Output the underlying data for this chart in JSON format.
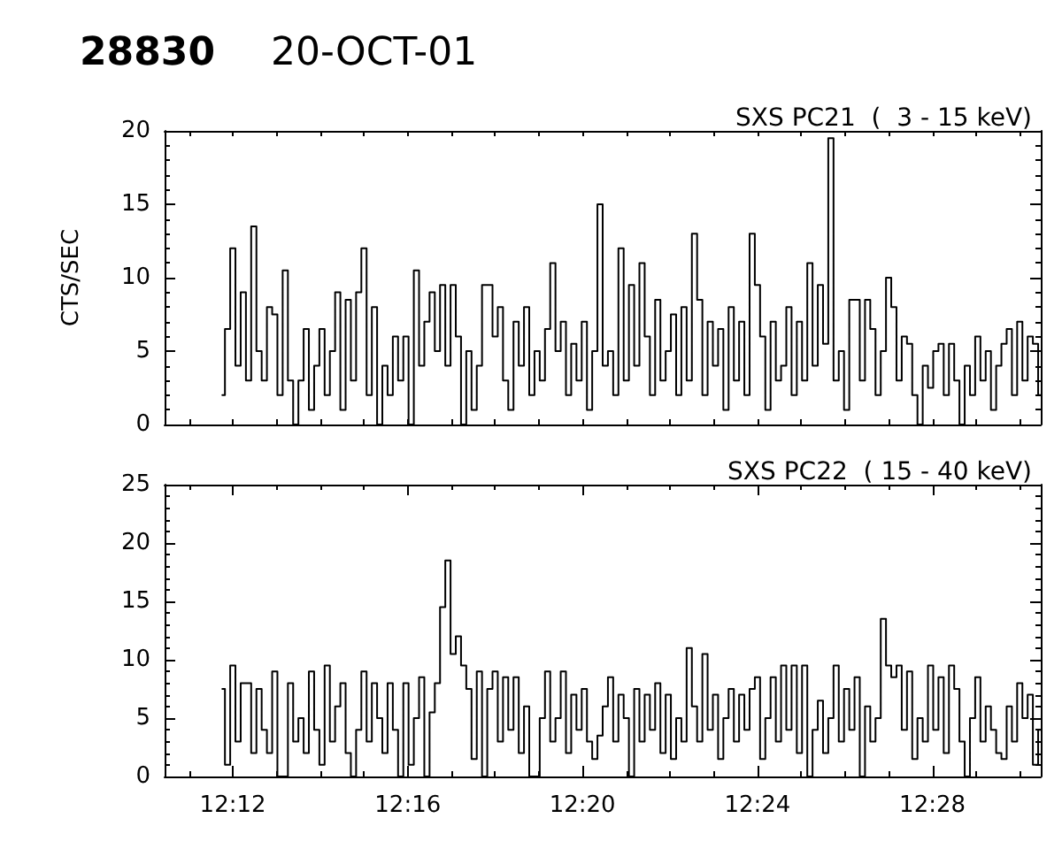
{
  "chart_data": [
    {
      "type": "step",
      "title": "28830",
      "subtitle": "20-OCT-01",
      "ylabel": "CTS/SEC",
      "tick_labels": "y",
      "x": [
        12.196,
        12.198,
        12.2,
        12.202,
        12.204,
        12.206,
        12.208,
        12.21,
        12.212,
        12.214,
        12.216,
        12.218,
        12.22,
        12.222,
        12.224,
        12.226,
        12.228,
        12.23,
        12.232,
        12.234,
        12.236,
        12.238,
        12.24,
        12.242,
        12.244,
        12.246,
        12.248,
        12.25,
        12.252,
        12.254,
        12.256,
        12.258,
        12.26,
        12.262,
        12.264,
        12.266,
        12.268,
        12.27,
        12.272,
        12.274,
        12.276,
        12.278,
        12.28,
        12.282,
        12.284,
        12.286,
        12.288,
        12.29,
        12.292,
        12.294,
        12.296,
        12.298,
        12.3,
        12.302,
        12.304,
        12.306,
        12.308,
        12.31,
        12.312,
        12.314,
        12.316,
        12.318,
        12.32,
        12.322,
        12.324,
        12.326,
        12.328,
        12.33,
        12.332,
        12.334,
        12.336,
        12.338,
        12.34,
        12.342,
        12.344,
        12.346,
        12.348,
        12.35,
        12.352,
        12.354,
        12.356,
        12.358,
        12.36,
        12.362,
        12.364,
        12.366,
        12.368,
        12.37,
        12.372,
        12.374,
        12.376,
        12.378,
        12.38,
        12.382,
        12.384,
        12.386,
        12.388,
        12.39,
        12.392,
        12.394,
        12.396,
        12.398,
        12.4,
        12.402,
        12.404,
        12.406,
        12.408,
        12.41,
        12.412,
        12.414,
        12.416,
        12.418,
        12.42,
        12.422,
        12.424,
        12.426,
        12.428,
        12.43,
        12.432,
        12.434,
        12.436,
        12.438,
        12.44,
        12.442,
        12.444,
        12.446,
        12.448,
        12.45,
        12.452,
        12.454,
        12.456,
        12.458,
        12.46,
        12.462,
        12.464,
        12.466,
        12.468,
        12.47,
        12.472,
        12.474,
        12.476,
        12.478,
        12.48,
        12.482,
        12.484,
        12.486,
        12.488,
        12.49,
        12.492,
        12.494,
        12.496,
        12.498,
        12.5,
        12.502,
        12.504,
        12.506,
        12.508
      ],
      "series": [
        {
          "name": "SXS PC21  (  3 - 15 keV)",
          "color": "#000000",
          "values": [
            2,
            6.5,
            12,
            4,
            9,
            3,
            13.5,
            5,
            3,
            8,
            7.5,
            2,
            10.5,
            3,
            0,
            3,
            6.5,
            1,
            4,
            6.5,
            2,
            5,
            9,
            1,
            8.5,
            3,
            9,
            12,
            2,
            8,
            0,
            4,
            2,
            6,
            3,
            6,
            0,
            10.5,
            4,
            7,
            9,
            5,
            9.5,
            4,
            9.5,
            6,
            0,
            5,
            1,
            4,
            9.5,
            9.5,
            6,
            8,
            3,
            1,
            7,
            4,
            8,
            2,
            5,
            3,
            6.5,
            11,
            5,
            7,
            2,
            5.5,
            3,
            7,
            1,
            5,
            15,
            4,
            5,
            2,
            12,
            3,
            9.5,
            4,
            11,
            6,
            2,
            8.5,
            3,
            5,
            7.5,
            2,
            8,
            3,
            13,
            8.5,
            2,
            7,
            4,
            6.5,
            1,
            8,
            3,
            7,
            2,
            13,
            9.5,
            6,
            1,
            7,
            3,
            4,
            8,
            2,
            7,
            3,
            11,
            4,
            9.5,
            5.5,
            19.5,
            3,
            5,
            1,
            8.5,
            8.5,
            3,
            8.5,
            6.5,
            2,
            5,
            10,
            8,
            3,
            6,
            5.5,
            2,
            0,
            4,
            2.5,
            5,
            5.5,
            2,
            5.5,
            3,
            0,
            4,
            2,
            6,
            3,
            5,
            1,
            4,
            5.5,
            6.5,
            2,
            7,
            3,
            6,
            5.5,
            2
          ]
        }
      ],
      "xlim": [
        12.174,
        12.508
      ],
      "xticks": [
        {
          "value": 12.1833,
          "label": null
        },
        {
          "value": 12.2,
          "label": null
        },
        {
          "value": 12.2167,
          "label": null
        },
        {
          "value": 12.2333,
          "label": null
        },
        {
          "value": 12.25,
          "label": null
        },
        {
          "value": 12.2667,
          "label": null
        },
        {
          "value": 12.2833,
          "label": null
        },
        {
          "value": 12.3,
          "label": null
        },
        {
          "value": 12.3167,
          "label": null
        },
        {
          "value": 12.3333,
          "label": null
        },
        {
          "value": 12.35,
          "label": null
        },
        {
          "value": 12.3667,
          "label": null
        },
        {
          "value": 12.3833,
          "label": null
        },
        {
          "value": 12.4,
          "label": null
        },
        {
          "value": 12.4167,
          "label": null
        },
        {
          "value": 12.4333,
          "label": null
        },
        {
          "value": 12.45,
          "label": null
        },
        {
          "value": 12.4667,
          "label": null
        },
        {
          "value": 12.4833,
          "label": null
        },
        {
          "value": 12.5,
          "label": null
        }
      ],
      "ylim": [
        0,
        20
      ],
      "yticks": [
        0,
        {
          "value": 1,
          "label": null
        },
        {
          "value": 2,
          "label": null
        },
        {
          "value": 3,
          "label": null
        },
        {
          "value": 4,
          "label": null
        },
        5,
        {
          "value": 6,
          "label": null
        },
        {
          "value": 7,
          "label": null
        },
        {
          "value": 8,
          "label": null
        },
        {
          "value": 9,
          "label": null
        },
        10,
        {
          "value": 11,
          "label": null
        },
        {
          "value": 12,
          "label": null
        },
        {
          "value": 13,
          "label": null
        },
        {
          "value": 14,
          "label": null
        },
        15,
        {
          "value": 16,
          "label": null
        },
        {
          "value": 17,
          "label": null
        },
        {
          "value": 18,
          "label": null
        },
        {
          "value": 19,
          "label": null
        },
        20
      ]
    },
    {
      "type": "step",
      "x": [
        12.196,
        12.198,
        12.2,
        12.202,
        12.204,
        12.206,
        12.208,
        12.21,
        12.212,
        12.214,
        12.216,
        12.218,
        12.22,
        12.222,
        12.224,
        12.226,
        12.228,
        12.23,
        12.232,
        12.234,
        12.236,
        12.238,
        12.24,
        12.242,
        12.244,
        12.246,
        12.248,
        12.25,
        12.252,
        12.254,
        12.256,
        12.258,
        12.26,
        12.262,
        12.264,
        12.266,
        12.268,
        12.27,
        12.272,
        12.274,
        12.276,
        12.278,
        12.28,
        12.282,
        12.284,
        12.286,
        12.288,
        12.29,
        12.292,
        12.294,
        12.296,
        12.298,
        12.3,
        12.302,
        12.304,
        12.306,
        12.308,
        12.31,
        12.312,
        12.314,
        12.316,
        12.318,
        12.32,
        12.322,
        12.324,
        12.326,
        12.328,
        12.33,
        12.332,
        12.334,
        12.336,
        12.338,
        12.34,
        12.342,
        12.344,
        12.346,
        12.348,
        12.35,
        12.352,
        12.354,
        12.356,
        12.358,
        12.36,
        12.362,
        12.364,
        12.366,
        12.368,
        12.37,
        12.372,
        12.374,
        12.376,
        12.378,
        12.38,
        12.382,
        12.384,
        12.386,
        12.388,
        12.39,
        12.392,
        12.394,
        12.396,
        12.398,
        12.4,
        12.402,
        12.404,
        12.406,
        12.408,
        12.41,
        12.412,
        12.414,
        12.416,
        12.418,
        12.42,
        12.422,
        12.424,
        12.426,
        12.428,
        12.43,
        12.432,
        12.434,
        12.436,
        12.438,
        12.44,
        12.442,
        12.444,
        12.446,
        12.448,
        12.45,
        12.452,
        12.454,
        12.456,
        12.458,
        12.46,
        12.462,
        12.464,
        12.466,
        12.468,
        12.47,
        12.472,
        12.474,
        12.476,
        12.478,
        12.48,
        12.482,
        12.484,
        12.486,
        12.488,
        12.49,
        12.492,
        12.494,
        12.496,
        12.498,
        12.5,
        12.502,
        12.504,
        12.506,
        12.508
      ],
      "series": [
        {
          "name": "SXS PC22  ( 15 - 40 keV)",
          "color": "#000000",
          "values": [
            7.5,
            1,
            9.5,
            3,
            8,
            8,
            2,
            7.5,
            4,
            2,
            9,
            0,
            0,
            8,
            3,
            5,
            2,
            9,
            4,
            1,
            9.5,
            3,
            6,
            8,
            2,
            0,
            4,
            9,
            3,
            8,
            5,
            2,
            8,
            4,
            0,
            8,
            1,
            5,
            8.5,
            0,
            5.5,
            8,
            14.5,
            18.5,
            10.5,
            12,
            9.5,
            7.5,
            1.5,
            9,
            0,
            7.5,
            9,
            3,
            8.5,
            4,
            8.5,
            2,
            6,
            0,
            0,
            5,
            9,
            3,
            5,
            9,
            2,
            7,
            4,
            7.5,
            3,
            1.5,
            3.5,
            6,
            8.5,
            3,
            7,
            5,
            0,
            7.5,
            3,
            7,
            4,
            8,
            2,
            7,
            1.5,
            5,
            3,
            11,
            6,
            3,
            10.5,
            4,
            7,
            1.5,
            5,
            7.5,
            3,
            7,
            4,
            7.5,
            8.5,
            1.5,
            5,
            8.5,
            3,
            9.5,
            4,
            9.5,
            2,
            9.5,
            0,
            4,
            6.5,
            2,
            5,
            9.5,
            3,
            7.5,
            4,
            8.5,
            0,
            6,
            3,
            5,
            13.5,
            9.5,
            8.5,
            9.5,
            4,
            9,
            1.5,
            5,
            3,
            9.5,
            4,
            8.5,
            2,
            9.5,
            7.5,
            3,
            0,
            5,
            8.5,
            3,
            6,
            4,
            2,
            1.5,
            6,
            3,
            8,
            5,
            7,
            1,
            4
          ]
        }
      ],
      "xlim": [
        12.174,
        12.508
      ],
      "xticks": [
        {
          "value": 12.1833,
          "label": null
        },
        {
          "value": 12.2,
          "label": "12:12"
        },
        {
          "value": 12.2167,
          "label": null
        },
        {
          "value": 12.2333,
          "label": null
        },
        {
          "value": 12.25,
          "label": null
        },
        {
          "value": 12.2667,
          "label": "12:16"
        },
        {
          "value": 12.2833,
          "label": null
        },
        {
          "value": 12.3,
          "label": null
        },
        {
          "value": 12.3167,
          "label": null
        },
        {
          "value": 12.3333,
          "label": "12:20"
        },
        {
          "value": 12.35,
          "label": null
        },
        {
          "value": 12.3667,
          "label": null
        },
        {
          "value": 12.3833,
          "label": null
        },
        {
          "value": 12.4,
          "label": "12:24"
        },
        {
          "value": 12.4167,
          "label": null
        },
        {
          "value": 12.4333,
          "label": null
        },
        {
          "value": 12.45,
          "label": null
        },
        {
          "value": 12.4667,
          "label": "12:28"
        },
        {
          "value": 12.4833,
          "label": null
        },
        {
          "value": 12.5,
          "label": null
        }
      ],
      "ylim": [
        0,
        25
      ],
      "yticks": [
        0,
        {
          "value": 1,
          "label": null
        },
        {
          "value": 2,
          "label": null
        },
        {
          "value": 3,
          "label": null
        },
        {
          "value": 4,
          "label": null
        },
        5,
        {
          "value": 6,
          "label": null
        },
        {
          "value": 7,
          "label": null
        },
        {
          "value": 8,
          "label": null
        },
        {
          "value": 9,
          "label": null
        },
        10,
        {
          "value": 11,
          "label": null
        },
        {
          "value": 12,
          "label": null
        },
        {
          "value": 13,
          "label": null
        },
        {
          "value": 14,
          "label": null
        },
        15,
        {
          "value": 16,
          "label": null
        },
        {
          "value": 17,
          "label": null
        },
        {
          "value": 18,
          "label": null
        },
        {
          "value": 19,
          "label": null
        },
        20,
        {
          "value": 21,
          "label": null
        },
        {
          "value": 22,
          "label": null
        },
        {
          "value": 23,
          "label": null
        },
        {
          "value": 24,
          "label": null
        },
        25
      ]
    }
  ]
}
